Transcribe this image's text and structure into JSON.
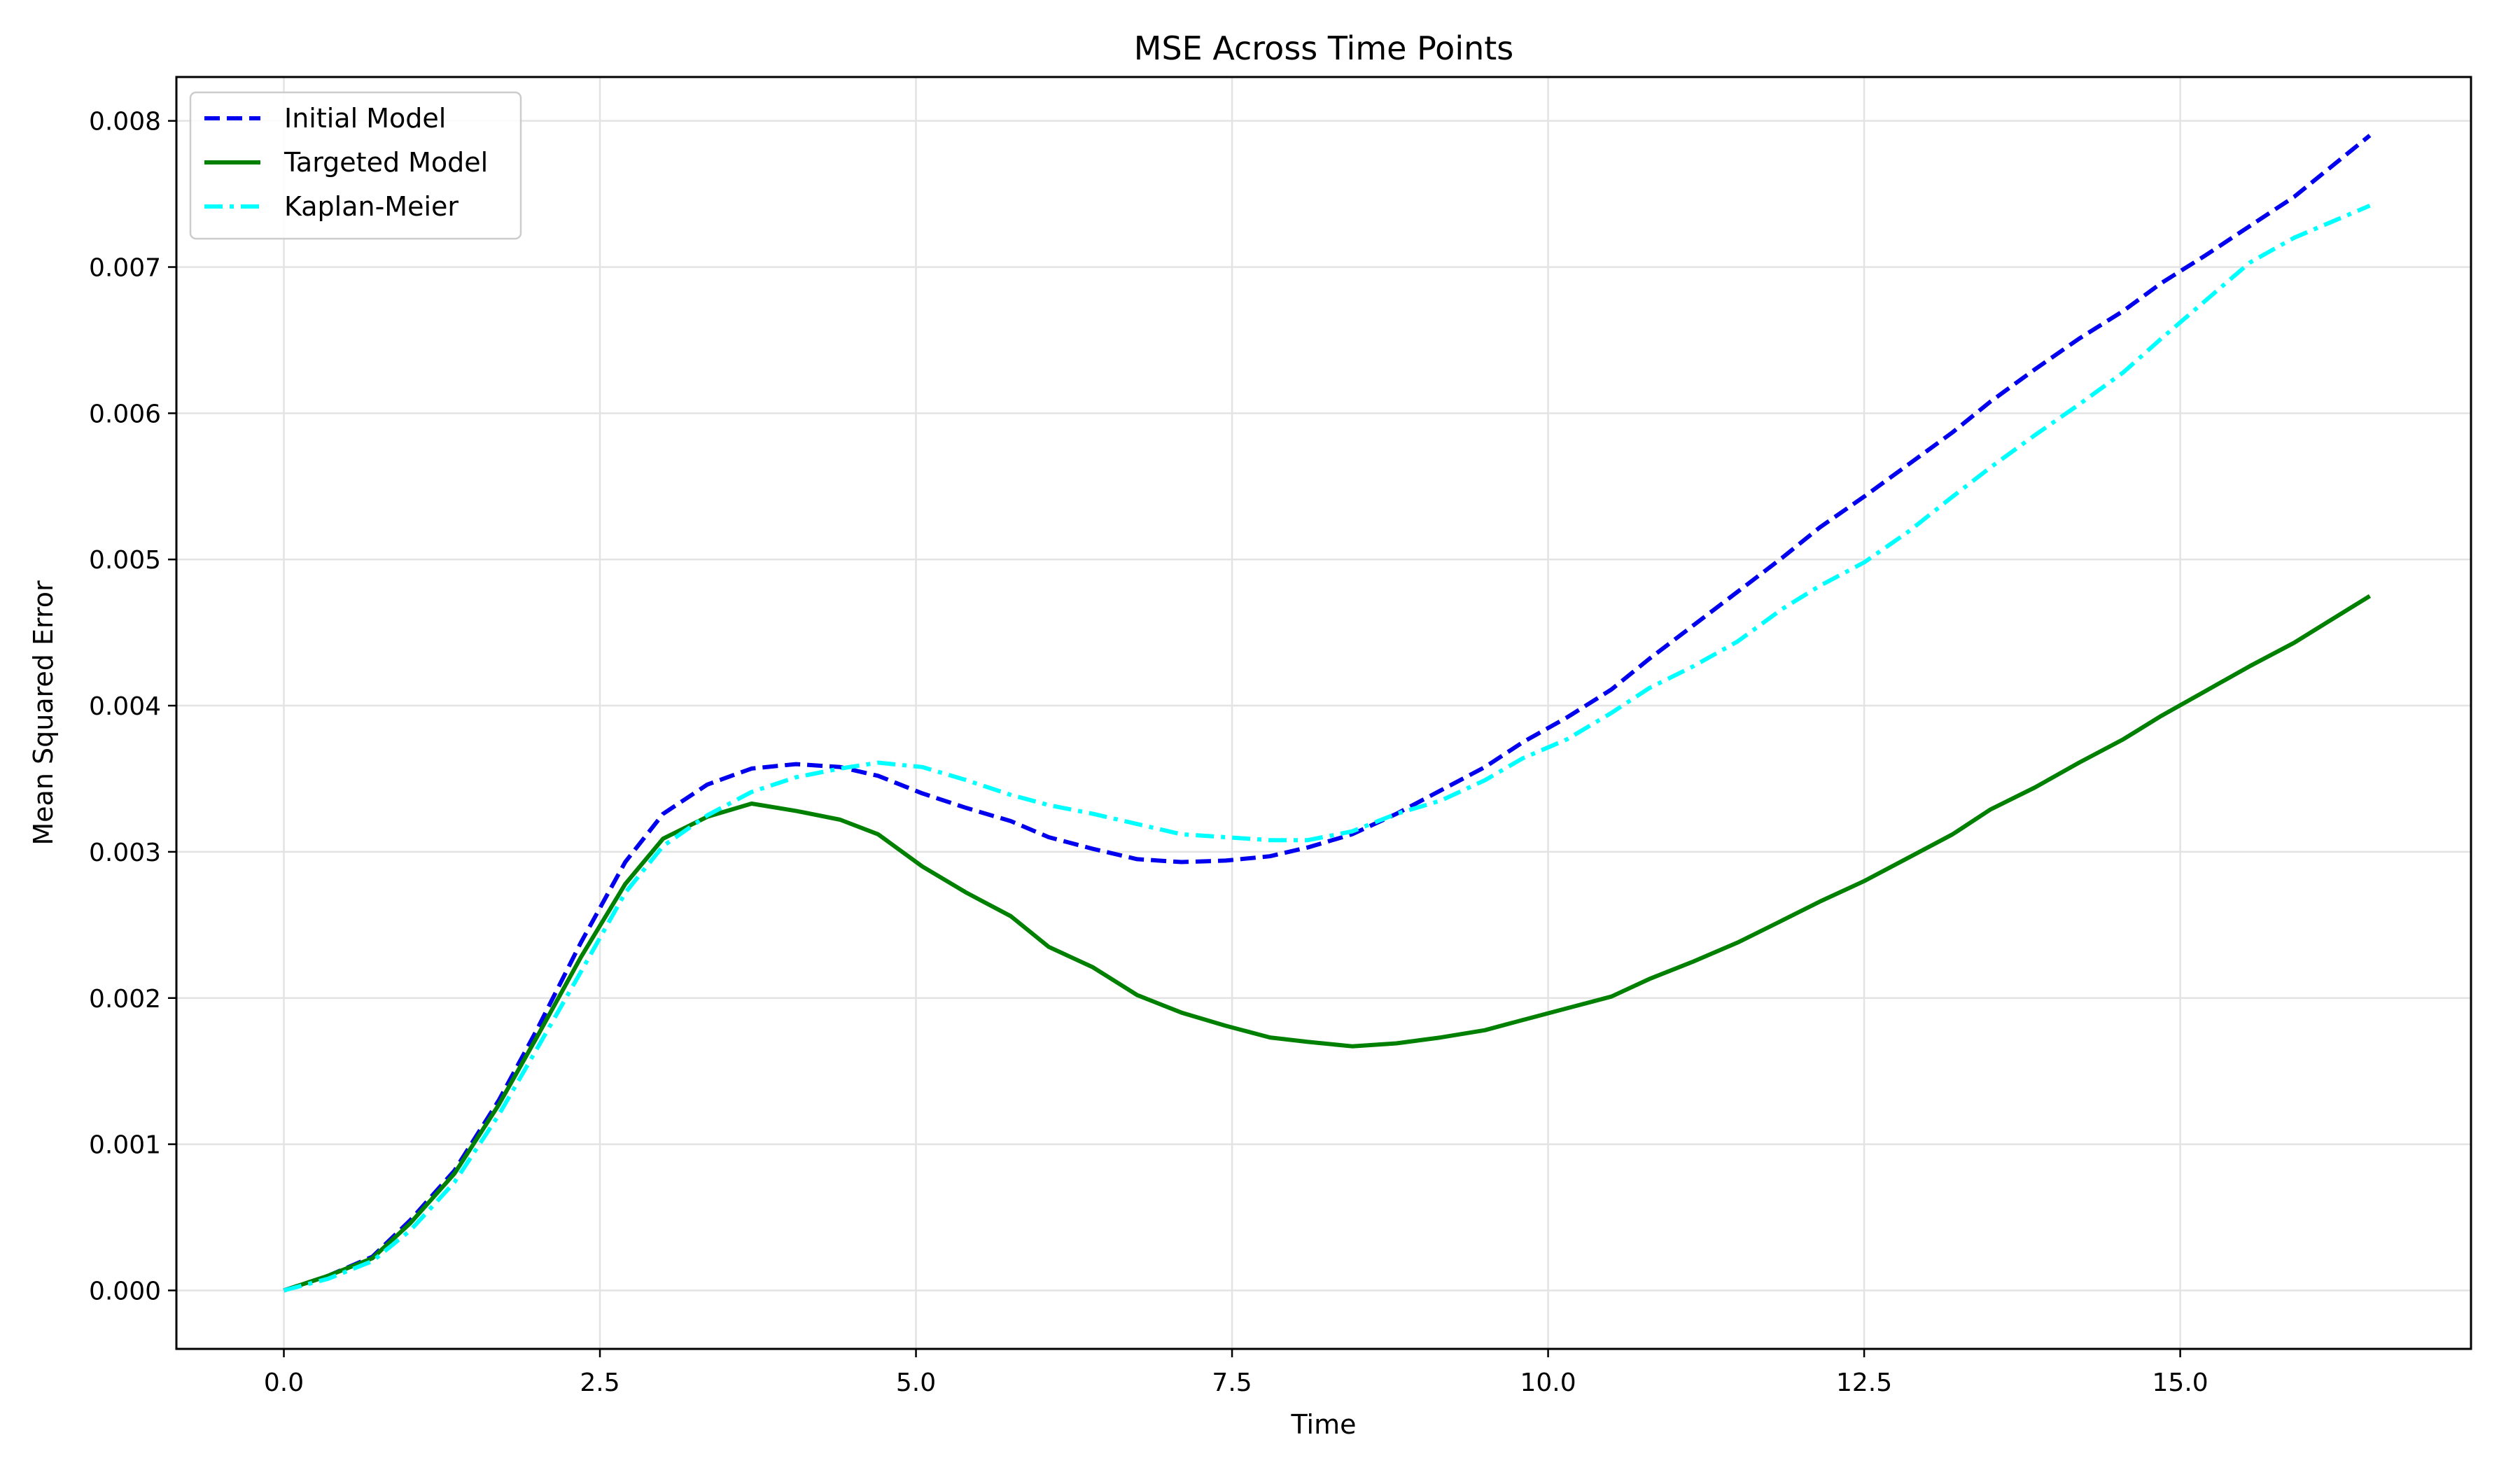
{
  "chart_data": {
    "type": "line",
    "title": "MSE Across Time Points",
    "xlabel": "Time",
    "ylabel": "Mean Squared Error",
    "xlim": [
      -0.85,
      17.3
    ],
    "ylim": [
      -0.0004,
      0.0083
    ],
    "xticks": [
      0.0,
      2.5,
      5.0,
      7.5,
      10.0,
      12.5,
      15.0
    ],
    "xtick_labels": [
      "0.0",
      "2.5",
      "5.0",
      "7.5",
      "10.0",
      "12.5",
      "15.0"
    ],
    "yticks": [
      0.0,
      0.001,
      0.002,
      0.003,
      0.004,
      0.005,
      0.006,
      0.007,
      0.008
    ],
    "ytick_labels": [
      "0.000",
      "0.001",
      "0.002",
      "0.003",
      "0.004",
      "0.005",
      "0.006",
      "0.007",
      "0.008"
    ],
    "grid": true,
    "legend_position": "top-left",
    "series": [
      {
        "name": "Initial Model",
        "color": "#0000ee",
        "style": "dashed",
        "x": [
          0,
          0.35,
          0.7,
          1.0,
          1.35,
          1.7,
          2.0,
          2.35,
          2.7,
          3.0,
          3.35,
          3.7,
          4.05,
          4.4,
          4.7,
          5.05,
          5.4,
          5.75,
          6.05,
          6.4,
          6.75,
          7.1,
          7.45,
          7.8,
          8.1,
          8.45,
          8.8,
          9.15,
          9.5,
          9.8,
          10.15,
          10.5,
          10.8,
          11.15,
          11.5,
          11.85,
          12.15,
          12.5,
          12.85,
          13.2,
          13.5,
          13.85,
          14.2,
          14.55,
          14.85,
          15.2,
          15.55,
          15.9,
          16.2,
          16.5
        ],
        "y": [
          0.0,
          0.0001,
          0.00023,
          0.00048,
          0.00082,
          0.0013,
          0.00178,
          0.00238,
          0.00293,
          0.00326,
          0.00346,
          0.00357,
          0.0036,
          0.00358,
          0.00352,
          0.0034,
          0.0033,
          0.00321,
          0.0031,
          0.00302,
          0.00295,
          0.00293,
          0.00294,
          0.00297,
          0.00303,
          0.00312,
          0.00326,
          0.00342,
          0.00358,
          0.00375,
          0.00392,
          0.00411,
          0.00432,
          0.00455,
          0.00478,
          0.00501,
          0.00522,
          0.00543,
          0.00565,
          0.00587,
          0.00608,
          0.0063,
          0.00651,
          0.0067,
          0.00689,
          0.00708,
          0.00728,
          0.00748,
          0.00769,
          0.0079
        ]
      },
      {
        "name": "Targeted Model",
        "color": "#008000",
        "style": "solid",
        "x": [
          0,
          0.35,
          0.7,
          1.0,
          1.35,
          1.7,
          2.0,
          2.35,
          2.7,
          3.0,
          3.35,
          3.7,
          4.05,
          4.4,
          4.7,
          5.05,
          5.4,
          5.75,
          6.05,
          6.4,
          6.75,
          7.1,
          7.45,
          7.8,
          8.1,
          8.45,
          8.8,
          9.15,
          9.5,
          9.8,
          10.15,
          10.5,
          10.8,
          11.15,
          11.5,
          11.85,
          12.15,
          12.5,
          12.85,
          13.2,
          13.5,
          13.85,
          14.2,
          14.55,
          14.85,
          15.2,
          15.55,
          15.9,
          16.2,
          16.5
        ],
        "y": [
          0.0,
          0.0001,
          0.00022,
          0.00046,
          0.0008,
          0.00127,
          0.00173,
          0.00228,
          0.00278,
          0.00309,
          0.00324,
          0.00333,
          0.00328,
          0.00322,
          0.00312,
          0.0029,
          0.00272,
          0.00256,
          0.00235,
          0.00221,
          0.00202,
          0.0019,
          0.00181,
          0.00173,
          0.0017,
          0.00167,
          0.00169,
          0.00173,
          0.00178,
          0.00185,
          0.00193,
          0.00201,
          0.00213,
          0.00225,
          0.00238,
          0.00253,
          0.00266,
          0.0028,
          0.00296,
          0.00312,
          0.00329,
          0.00344,
          0.00361,
          0.00377,
          0.00393,
          0.0041,
          0.00427,
          0.00443,
          0.00459,
          0.00475
        ]
      },
      {
        "name": "Kaplan-Meier",
        "color": "#00ffff",
        "style": "dashdot",
        "x": [
          0,
          0.35,
          0.7,
          1.0,
          1.35,
          1.7,
          2.0,
          2.35,
          2.7,
          3.0,
          3.35,
          3.7,
          4.05,
          4.4,
          4.7,
          5.05,
          5.4,
          5.75,
          6.05,
          6.4,
          6.75,
          7.1,
          7.45,
          7.8,
          8.1,
          8.45,
          8.8,
          9.15,
          9.5,
          9.8,
          10.15,
          10.5,
          10.8,
          11.15,
          11.5,
          11.85,
          12.15,
          12.5,
          12.85,
          13.2,
          13.5,
          13.85,
          14.2,
          14.55,
          14.85,
          15.2,
          15.55,
          15.9,
          16.2,
          16.5
        ],
        "y": [
          0.0,
          8e-05,
          0.0002,
          0.00041,
          0.00074,
          0.0012,
          0.00165,
          0.00218,
          0.00272,
          0.00304,
          0.00325,
          0.00341,
          0.00351,
          0.00357,
          0.00361,
          0.00358,
          0.00349,
          0.00339,
          0.00332,
          0.00326,
          0.00319,
          0.00312,
          0.0031,
          0.00308,
          0.00308,
          0.00314,
          0.00326,
          0.00335,
          0.00349,
          0.00364,
          0.00377,
          0.00395,
          0.00412,
          0.00427,
          0.00444,
          0.00466,
          0.00482,
          0.00498,
          0.00519,
          0.00543,
          0.00563,
          0.00585,
          0.00606,
          0.00628,
          0.00651,
          0.00677,
          0.00703,
          0.0072,
          0.00731,
          0.00742
        ]
      }
    ]
  }
}
